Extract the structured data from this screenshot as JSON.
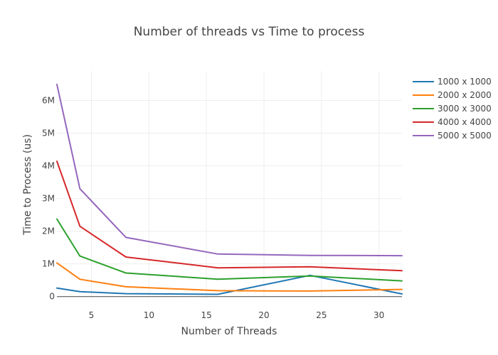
{
  "chart_data": {
    "type": "line",
    "title": "Number of threads vs Time to process",
    "xlabel": "Number of Threads",
    "ylabel": "Time to Process (us)",
    "xlim": [
      2,
      32
    ],
    "ylim": [
      -0.05,
      6.9
    ],
    "y_unit_scale": "M",
    "x_ticks": [
      5,
      10,
      15,
      20,
      25,
      30
    ],
    "y_ticks": [
      0,
      1,
      2,
      3,
      4,
      5,
      6
    ],
    "y_tick_labels": [
      "0",
      "1M",
      "2M",
      "3M",
      "4M",
      "5M",
      "6M"
    ],
    "grid": true,
    "legend_position": "top-right",
    "x": [
      2,
      4,
      8,
      16,
      24,
      32
    ],
    "series": [
      {
        "name": "1000 x 1000",
        "color": "#1f77b4",
        "values": [
          0.26,
          0.15,
          0.09,
          0.07,
          0.65,
          0.08
        ]
      },
      {
        "name": "2000 x 2000",
        "color": "#ff7f0e",
        "values": [
          1.03,
          0.53,
          0.3,
          0.18,
          0.17,
          0.22
        ]
      },
      {
        "name": "3000 x 3000",
        "color": "#2ca02c",
        "values": [
          2.37,
          1.24,
          0.72,
          0.53,
          0.63,
          0.48
        ]
      },
      {
        "name": "4000 x 4000",
        "color": "#d62728",
        "values": [
          4.14,
          2.15,
          1.21,
          0.88,
          0.91,
          0.79
        ]
      },
      {
        "name": "5000 x 5000",
        "color": "#9467bd",
        "values": [
          6.49,
          3.3,
          1.81,
          1.3,
          1.26,
          1.25
        ]
      }
    ]
  }
}
